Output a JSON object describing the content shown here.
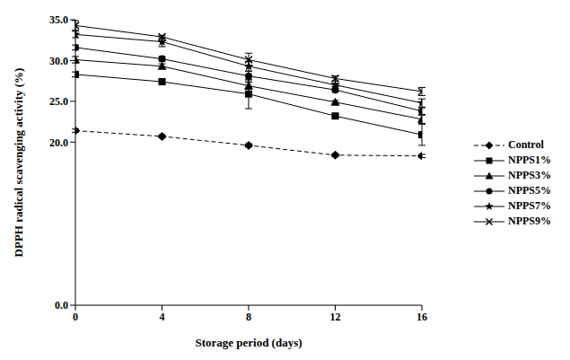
{
  "chart_data": {
    "type": "line",
    "x_label": "Storage period (days)",
    "y_label": "DPPH radical scavenging activity (%)",
    "x": [
      0,
      4,
      8,
      12,
      16
    ],
    "xlim": [
      0,
      16
    ],
    "xticks": [
      0,
      4,
      8,
      12,
      16
    ],
    "ylim": [
      0,
      35
    ],
    "yticks": [
      {
        "value": 0,
        "label": "0.0"
      },
      {
        "value": 20,
        "label": "20.0"
      },
      {
        "value": 25,
        "label": "25.0"
      },
      {
        "value": 30,
        "label": "30.0"
      },
      {
        "value": 35,
        "label": "35.0"
      }
    ],
    "grid": false,
    "legend": "right",
    "series": [
      {
        "name": "Control",
        "color": "#000000",
        "marker": "diamond",
        "line_style": "dashed",
        "values": [
          21.4,
          20.7,
          19.6,
          18.4,
          18.3
        ],
        "errors": [
          0.2,
          0.2,
          0.2,
          0.2,
          0.2
        ]
      },
      {
        "name": "NPPS1%",
        "color": "#000000",
        "marker": "square",
        "line_style": "solid",
        "values": [
          28.3,
          27.4,
          25.9,
          23.2,
          20.9
        ],
        "errors": [
          0.3,
          0.3,
          1.8,
          0.2,
          1.3
        ]
      },
      {
        "name": "NPPS3%",
        "color": "#000000",
        "marker": "triangle",
        "line_style": "solid",
        "values": [
          30.1,
          29.3,
          26.9,
          24.9,
          22.8
        ],
        "errors": [
          0.4,
          0.3,
          0.4,
          0.2,
          0.5
        ]
      },
      {
        "name": "NPPS5%",
        "color": "#000000",
        "marker": "circle",
        "line_style": "solid",
        "values": [
          31.6,
          30.2,
          28.1,
          26.4,
          23.8
        ],
        "errors": [
          0.3,
          0.3,
          0.6,
          0.2,
          0.4
        ]
      },
      {
        "name": "NPPS7%",
        "color": "#000000",
        "marker": "star",
        "line_style": "solid",
        "values": [
          33.2,
          32.3,
          29.3,
          27.0,
          24.8
        ],
        "errors": [
          0.4,
          0.6,
          0.6,
          0.2,
          0.5
        ]
      },
      {
        "name": "NPPS9%",
        "color": "#000000",
        "marker": "x",
        "line_style": "solid",
        "values": [
          34.3,
          32.9,
          30.1,
          27.8,
          26.2
        ],
        "errors": [
          0.6,
          0.2,
          0.8,
          0.3,
          0.5
        ]
      }
    ]
  }
}
